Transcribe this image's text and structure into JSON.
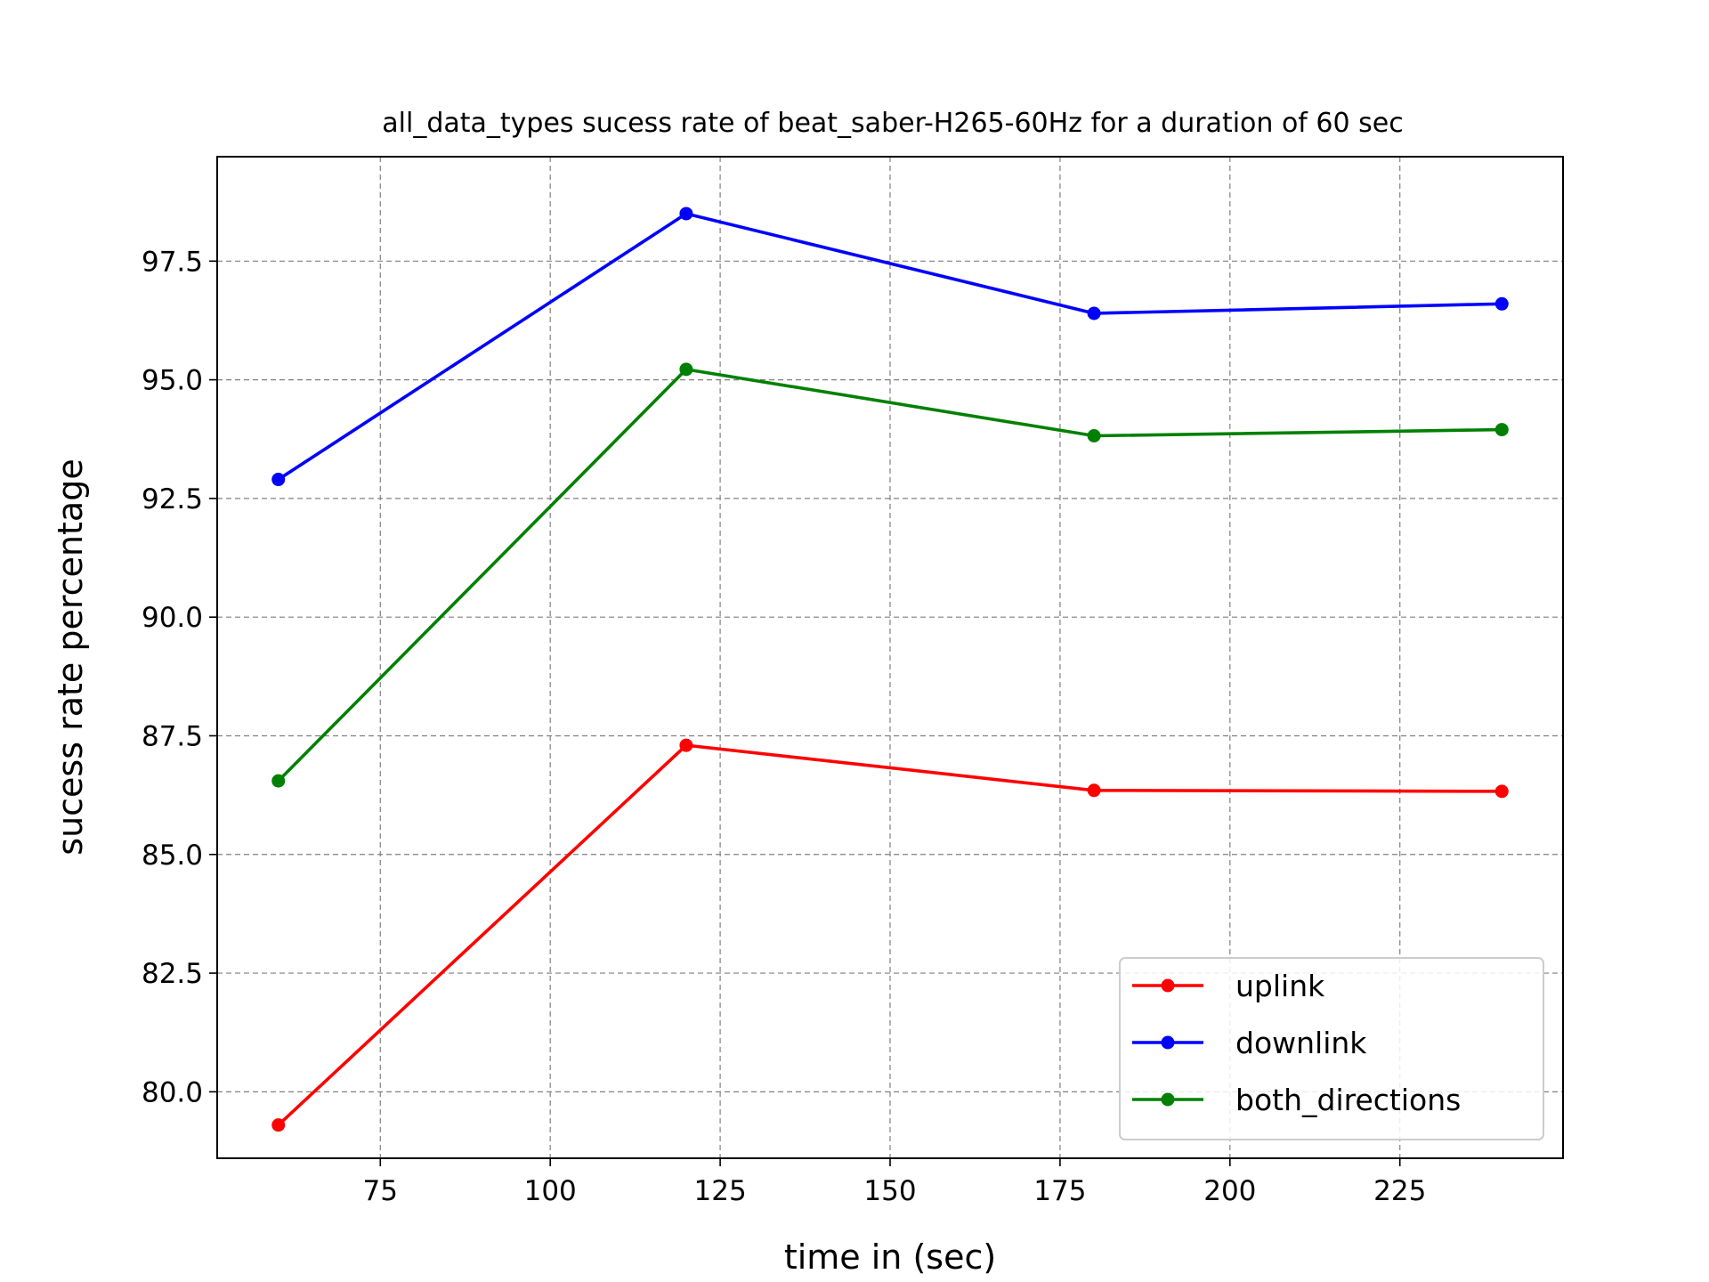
{
  "chart_data": {
    "type": "line",
    "title": "all_data_types sucess rate of beat_saber-H265-60Hz for a duration of 60 sec",
    "xlabel": "time in (sec)",
    "ylabel": "sucess rate percentage",
    "x": [
      60,
      120,
      180,
      240
    ],
    "xlim": [
      51,
      249
    ],
    "ylim": [
      78.6,
      99.7
    ],
    "xticks": [
      75,
      100,
      125,
      150,
      175,
      200,
      225
    ],
    "yticks": [
      80.0,
      82.5,
      85.0,
      87.5,
      90.0,
      92.5,
      95.0,
      97.5
    ],
    "xtick_labels": [
      "75",
      "100",
      "125",
      "150",
      "175",
      "200",
      "225"
    ],
    "ytick_labels": [
      "80.0",
      "82.5",
      "85.0",
      "87.5",
      "90.0",
      "92.5",
      "95.0",
      "97.5"
    ],
    "grid": true,
    "legend_position": "lower-right",
    "series": [
      {
        "name": "uplink",
        "color": "#ff0000",
        "values": [
          79.3,
          87.3,
          86.35,
          86.33
        ]
      },
      {
        "name": "downlink",
        "color": "#0000ff",
        "values": [
          92.9,
          98.5,
          96.4,
          96.6
        ]
      },
      {
        "name": "both_directions",
        "color": "#008000",
        "values": [
          86.55,
          95.22,
          93.82,
          93.95
        ]
      }
    ]
  }
}
